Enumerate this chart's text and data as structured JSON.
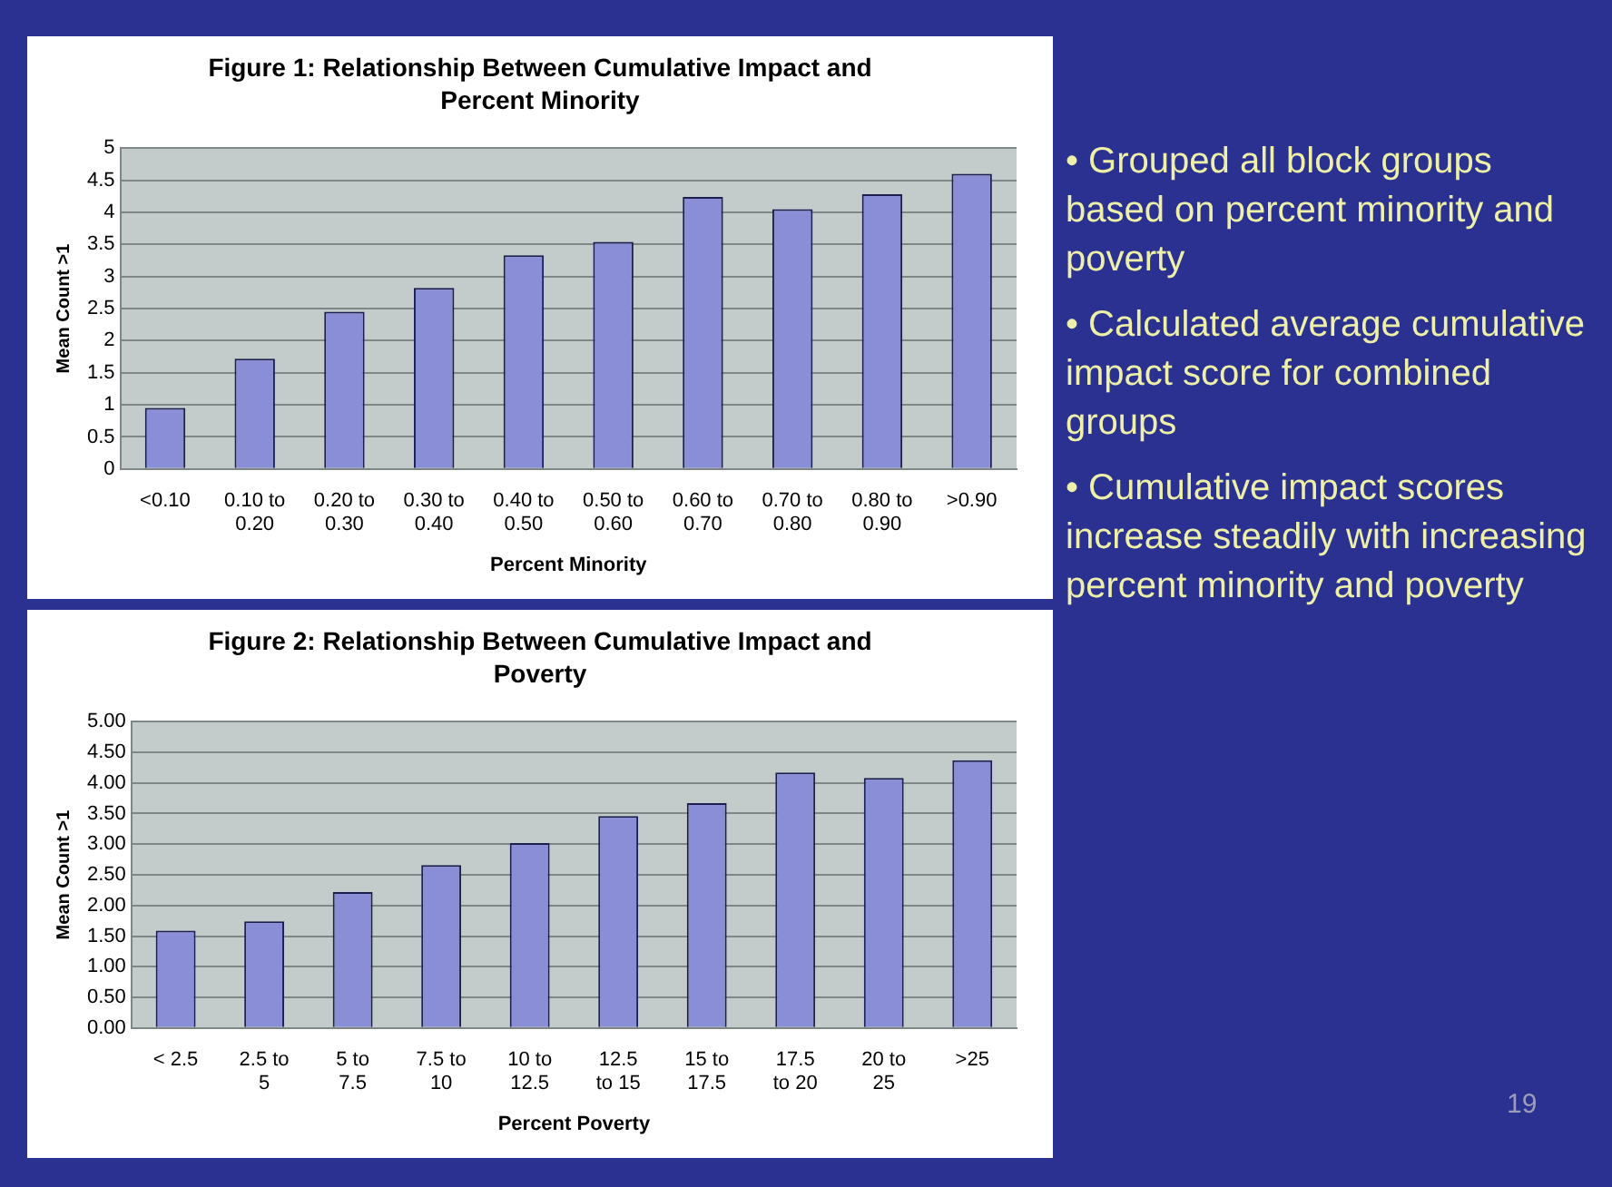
{
  "chart_data": [
    {
      "type": "bar",
      "title": "Figure 1: Relationship Between Cumulative Impact and Percent Minority",
      "xlabel": "Percent Minority",
      "ylabel": "Mean Count >1",
      "categories": [
        "<0.10",
        "0.10 to 0.20",
        "0.20 to 0.30",
        "0.30 to 0.40",
        "0.40 to 0.50",
        "0.50 to 0.60",
        "0.60 to 0.70",
        "0.70 to 0.80",
        "0.80 to 0.90",
        ">0.90"
      ],
      "values": [
        0.95,
        1.72,
        2.45,
        2.82,
        3.33,
        3.54,
        4.24,
        4.05,
        4.28,
        4.6
      ],
      "color": "#8a8ed6",
      "ylim": [
        0,
        5
      ],
      "yticks": [
        0,
        0.5,
        1,
        1.5,
        2,
        2.5,
        3,
        3.5,
        4,
        4.5,
        5
      ],
      "grid": "y",
      "legend": false
    },
    {
      "type": "bar",
      "title": "Figure 2: Relationship Between Cumulative Impact and Poverty",
      "xlabel": "Percent Poverty",
      "ylabel": "Mean Count >1",
      "categories": [
        "< 2.5",
        "2.5 to 5",
        "5 to 7.5",
        "7.5 to 10",
        "10 to 12.5",
        "12.5 to 15",
        "15 to 17.5",
        "17.5 to 20",
        "20 to 25",
        ">25"
      ],
      "values": [
        1.59,
        1.74,
        2.22,
        2.66,
        3.02,
        3.46,
        3.67,
        4.17,
        4.08,
        4.37
      ],
      "color": "#8a8ed6",
      "ylim": [
        0,
        5
      ],
      "yticks": [
        {
          "value": 0,
          "label": "0.00"
        },
        {
          "value": 0.5,
          "label": "0.50"
        },
        {
          "value": 1,
          "label": "1.00"
        },
        {
          "value": 1.5,
          "label": "1.50"
        },
        {
          "value": 2,
          "label": "2.00"
        },
        {
          "value": 2.5,
          "label": "2.50"
        },
        {
          "value": 3,
          "label": "3.00"
        },
        {
          "value": 3.5,
          "label": "3.50"
        },
        {
          "value": 4,
          "label": "4.00"
        },
        {
          "value": 4.5,
          "label": "4.50"
        },
        {
          "value": 5,
          "label": "5.00"
        }
      ],
      "grid": "y",
      "legend": false
    },
    {
      "type": "other",
      "annotations": [
        "• Grouped all block groups based on percent minority and poverty",
        "• Calculated average cumulative impact score for combined groups",
        "• Cumulative impact scores increase steadily with increasing percent minority and poverty",
        "19"
      ]
    }
  ]
}
